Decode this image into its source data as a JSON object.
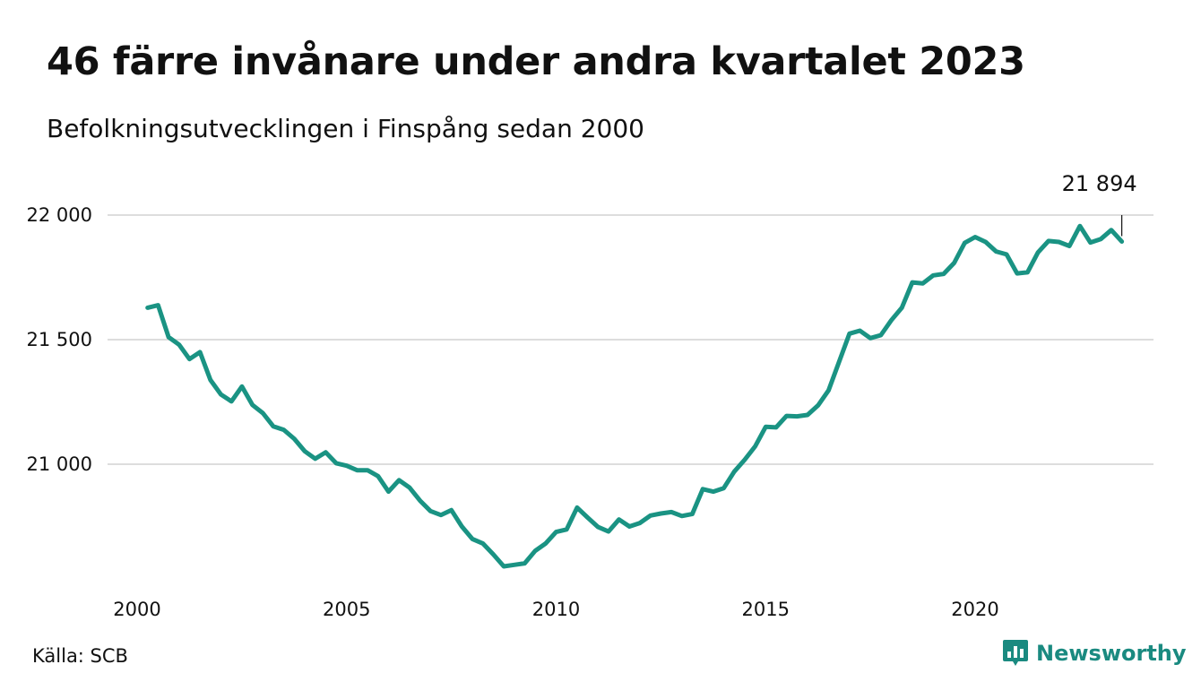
{
  "title": "46 färre invånare under andra kvartalet 2023",
  "subtitle": "Befolkningsutvecklingen i Finspång sedan 2000",
  "source": "Källa: SCB",
  "brand": {
    "name": "Newsworthy",
    "icon": "newsworthy-logo-icon"
  },
  "colors": {
    "line": "#1a9383",
    "grid": "#dddddd",
    "brand": "#1a8a80"
  },
  "chart_data": {
    "type": "line",
    "title": "46 färre invånare under andra kvartalet 2023",
    "subtitle": "Befolkningsutvecklingen i Finspång sedan 2000",
    "xlabel": "",
    "ylabel": "",
    "xlim": [
      2000,
      2023.5
    ],
    "ylim": [
      20600,
      22000
    ],
    "y_ticks": [
      21000,
      21500,
      22000
    ],
    "y_tick_labels": [
      "21 000",
      "21 500",
      "22 000"
    ],
    "x_ticks": [
      2000,
      2005,
      2010,
      2015,
      2020
    ],
    "x_tick_labels": [
      "2000",
      "2005",
      "2010",
      "2015",
      "2020"
    ],
    "grid": "horizontal",
    "last_value_label": "21 894",
    "series": [
      {
        "values": [
          [
            2000.25,
            21628
          ],
          [
            2000.5,
            21638
          ],
          [
            2000.75,
            21510
          ],
          [
            2001.0,
            21480
          ],
          [
            2001.25,
            21422
          ],
          [
            2001.5,
            21450
          ],
          [
            2001.75,
            21338
          ],
          [
            2002.0,
            21280
          ],
          [
            2002.25,
            21252
          ],
          [
            2002.5,
            21312
          ],
          [
            2002.75,
            21238
          ],
          [
            2003.0,
            21205
          ],
          [
            2003.25,
            21152
          ],
          [
            2003.5,
            21138
          ],
          [
            2003.75,
            21102
          ],
          [
            2004.0,
            21052
          ],
          [
            2004.25,
            21022
          ],
          [
            2004.5,
            21048
          ],
          [
            2004.75,
            21004
          ],
          [
            2005.0,
            20994
          ],
          [
            2005.25,
            20976
          ],
          [
            2005.5,
            20976
          ],
          [
            2005.75,
            20952
          ],
          [
            2006.0,
            20890
          ],
          [
            2006.25,
            20936
          ],
          [
            2006.5,
            20906
          ],
          [
            2006.75,
            20854
          ],
          [
            2007.0,
            20812
          ],
          [
            2007.25,
            20796
          ],
          [
            2007.5,
            20816
          ],
          [
            2007.75,
            20750
          ],
          [
            2008.0,
            20700
          ],
          [
            2008.25,
            20682
          ],
          [
            2008.5,
            20638
          ],
          [
            2008.75,
            20590
          ],
          [
            2009.0,
            20596
          ],
          [
            2009.25,
            20602
          ],
          [
            2009.5,
            20652
          ],
          [
            2009.75,
            20682
          ],
          [
            2010.0,
            20728
          ],
          [
            2010.25,
            20738
          ],
          [
            2010.5,
            20826
          ],
          [
            2010.75,
            20786
          ],
          [
            2011.0,
            20748
          ],
          [
            2011.25,
            20730
          ],
          [
            2011.5,
            20778
          ],
          [
            2011.75,
            20750
          ],
          [
            2012.0,
            20764
          ],
          [
            2012.25,
            20794
          ],
          [
            2012.5,
            20802
          ],
          [
            2012.75,
            20808
          ],
          [
            2013.0,
            20792
          ],
          [
            2013.25,
            20800
          ],
          [
            2013.5,
            20900
          ],
          [
            2013.75,
            20890
          ],
          [
            2014.0,
            20904
          ],
          [
            2014.25,
            20970
          ],
          [
            2014.5,
            21018
          ],
          [
            2014.75,
            21072
          ],
          [
            2015.0,
            21150
          ],
          [
            2015.25,
            21148
          ],
          [
            2015.5,
            21194
          ],
          [
            2015.75,
            21192
          ],
          [
            2016.0,
            21198
          ],
          [
            2016.25,
            21236
          ],
          [
            2016.5,
            21296
          ],
          [
            2016.75,
            21410
          ],
          [
            2017.0,
            21524
          ],
          [
            2017.25,
            21536
          ],
          [
            2017.5,
            21506
          ],
          [
            2017.75,
            21518
          ],
          [
            2018.0,
            21578
          ],
          [
            2018.25,
            21628
          ],
          [
            2018.5,
            21730
          ],
          [
            2018.75,
            21726
          ],
          [
            2019.0,
            21758
          ],
          [
            2019.25,
            21764
          ],
          [
            2019.5,
            21808
          ],
          [
            2019.75,
            21888
          ],
          [
            2020.0,
            21912
          ],
          [
            2020.25,
            21892
          ],
          [
            2020.5,
            21854
          ],
          [
            2020.75,
            21842
          ],
          [
            2021.0,
            21766
          ],
          [
            2021.25,
            21770
          ],
          [
            2021.5,
            21850
          ],
          [
            2021.75,
            21896
          ],
          [
            2022.0,
            21892
          ],
          [
            2022.25,
            21876
          ],
          [
            2022.5,
            21956
          ],
          [
            2022.75,
            21890
          ],
          [
            2023.0,
            21904
          ],
          [
            2023.25,
            21940
          ],
          [
            2023.5,
            21894
          ]
        ]
      }
    ]
  }
}
